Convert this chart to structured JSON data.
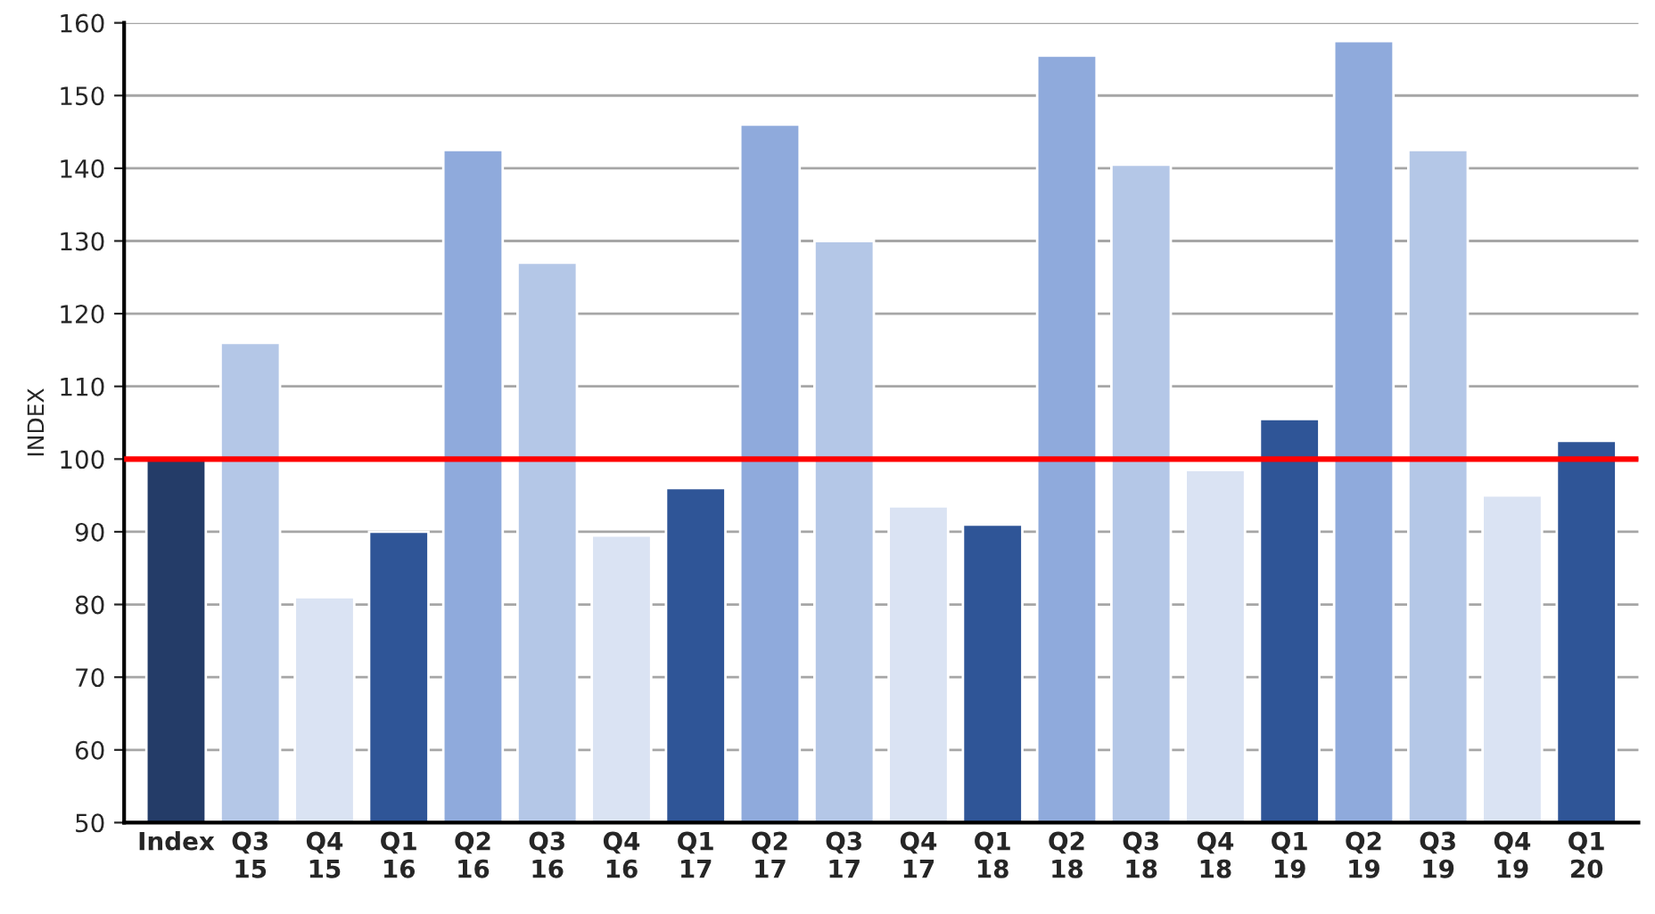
{
  "chart_data": {
    "type": "bar",
    "ylabel": "INDEX",
    "categories": [
      "Index",
      "Q3\n15",
      "Q4\n15",
      "Q1\n16",
      "Q2\n16",
      "Q3\n16",
      "Q4\n16",
      "Q1\n17",
      "Q2\n17",
      "Q3\n17",
      "Q4\n17",
      "Q1\n18",
      "Q2\n18",
      "Q3\n18",
      "Q4\n18",
      "Q1\n19",
      "Q2\n19",
      "Q3\n19",
      "Q4\n19",
      "Q1\n20"
    ],
    "values": [
      100,
      116,
      81,
      90,
      142.5,
      127,
      89.5,
      96,
      146,
      130,
      93.5,
      91,
      155.5,
      140.5,
      98.5,
      105.5,
      157.5,
      142.5,
      95,
      102.5
    ],
    "colors": [
      "#243c68",
      "#b4c7e7",
      "#dae3f3",
      "#2f5597",
      "#8faadc",
      "#b4c7e7",
      "#dae3f3",
      "#2f5597",
      "#8faadc",
      "#b4c7e7",
      "#dae3f3",
      "#2f5597",
      "#8faadc",
      "#b4c7e7",
      "#dae3f3",
      "#2f5597",
      "#8faadc",
      "#b4c7e7",
      "#dae3f3",
      "#2f5597"
    ],
    "ylim": [
      50,
      160
    ],
    "yticks": [
      50,
      60,
      70,
      80,
      90,
      100,
      110,
      120,
      130,
      140,
      150,
      160
    ],
    "grid": "y",
    "ref_lines": [
      {
        "axis": "y",
        "value": 100,
        "color": "#ff0000",
        "line_style": "solid"
      }
    ]
  }
}
